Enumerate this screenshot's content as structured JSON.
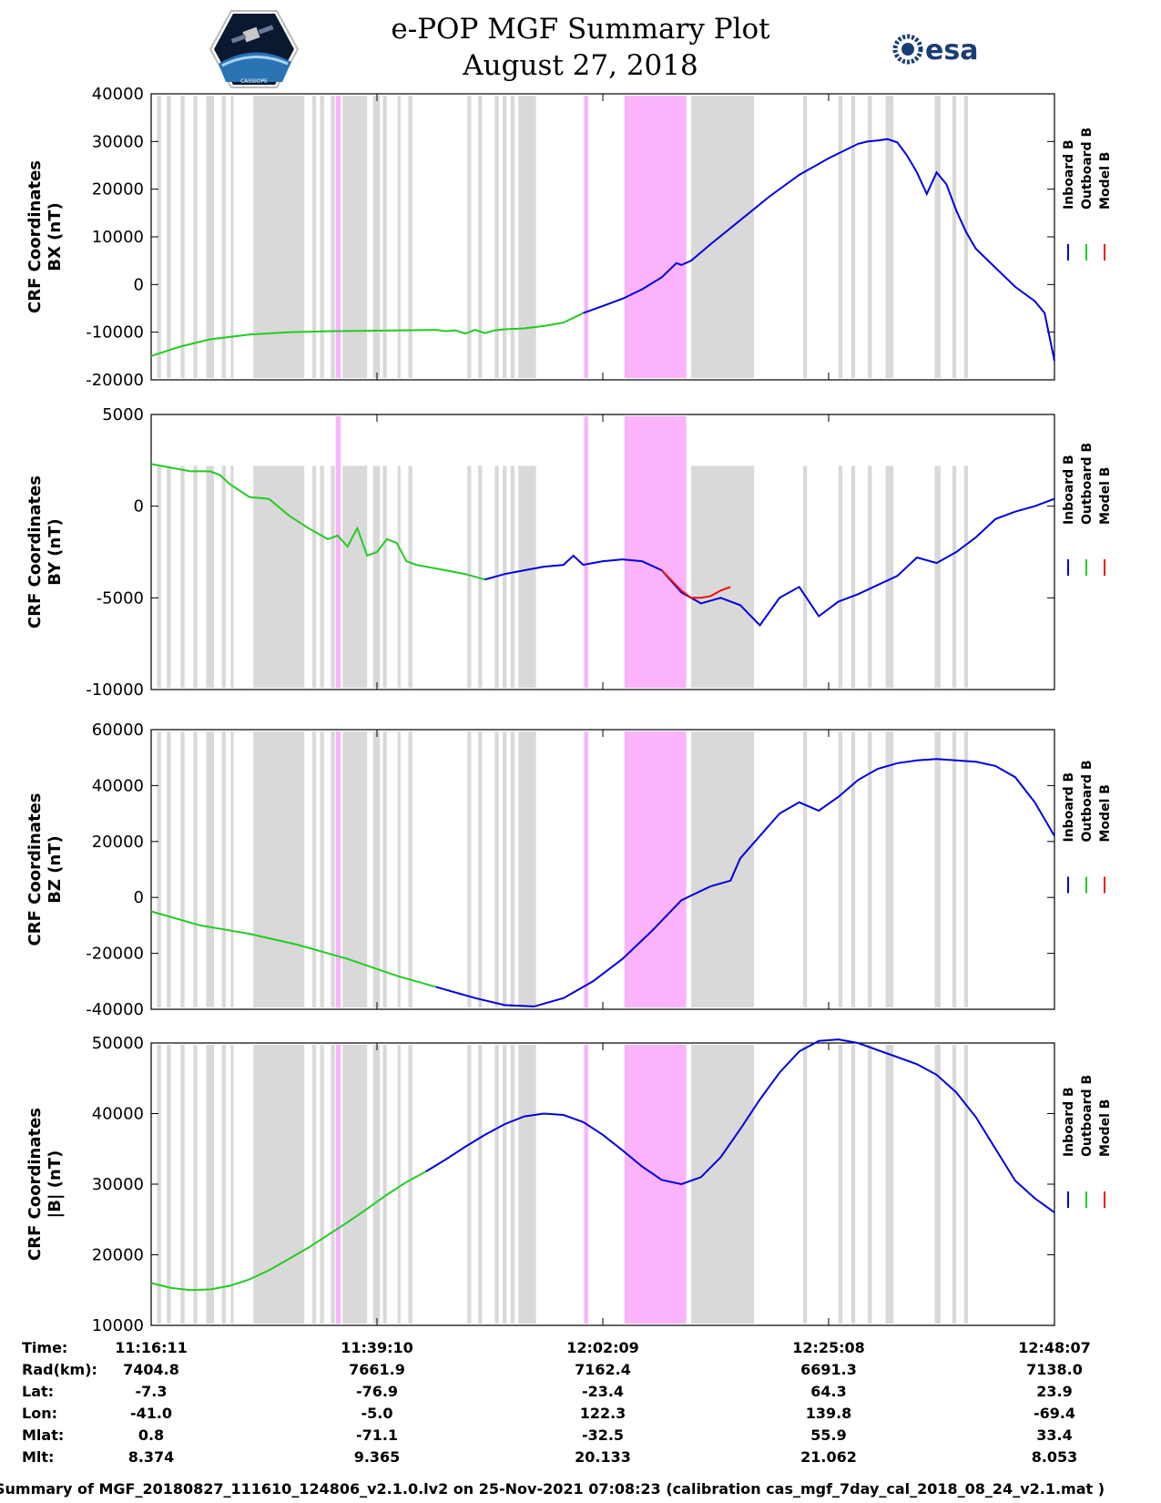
{
  "header": {
    "title_line1": "e-POP MGF Summary Plot",
    "title_line2": "August 27, 2018",
    "left_logo_text": "CASSIOPE",
    "right_logo_text": "esa"
  },
  "colors": {
    "inboard": "#0000dd",
    "outboard": "#22cc22",
    "model": "#ee1111",
    "gray_band": "#d9d9d9",
    "pink_band": "#fbb3fb"
  },
  "chart_data": [
    {
      "type": "line",
      "panel": "bx",
      "ylabel": [
        "CRF Coordinates",
        "BX (nT)"
      ],
      "ylim": [
        -20000,
        40000
      ],
      "yticks": [
        -20000,
        -10000,
        0,
        10000,
        20000,
        30000,
        40000
      ],
      "xlim_minutes": [
        0,
        92
      ],
      "legend": [
        "Inboard B",
        "Outboard B",
        "Model B"
      ],
      "series": [
        {
          "name": "Outboard B",
          "color_key": "outboard",
          "x": [
            0,
            3,
            6,
            10,
            14,
            18,
            22,
            26,
            29,
            30,
            31,
            32,
            33,
            34,
            35,
            36,
            37,
            38,
            40,
            42,
            44
          ],
          "y": [
            -15000,
            -13000,
            -11500,
            -10500,
            -10000,
            -9800,
            -9700,
            -9600,
            -9500,
            -9800,
            -9600,
            -10300,
            -9500,
            -10200,
            -9600,
            -9400,
            -9300,
            -9200,
            -8700,
            -8000,
            -6000
          ]
        },
        {
          "name": "Inboard B",
          "color_key": "inboard",
          "x": [
            44,
            46,
            48,
            50,
            52,
            53.5,
            54,
            55,
            57,
            60,
            63,
            66,
            69,
            72,
            73,
            74,
            75,
            76,
            77,
            78,
            79,
            80,
            81,
            82,
            83,
            84,
            86,
            88,
            90,
            91,
            92
          ],
          "y": [
            -6000,
            -4500,
            -3000,
            -1000,
            1500,
            4500,
            4100,
            5000,
            8500,
            13500,
            18500,
            23000,
            26500,
            29500,
            30000,
            30200,
            30500,
            29800,
            27000,
            23500,
            19000,
            23500,
            21000,
            15500,
            11000,
            7500,
            3500,
            -500,
            -3500,
            -6000,
            -16000
          ]
        }
      ],
      "model_series_x": [
        44,
        92
      ],
      "model_series_note": "overlaps inboard"
    },
    {
      "type": "line",
      "panel": "by",
      "ylabel": [
        "CRF Coordinates",
        "BY (nT)"
      ],
      "ylim": [
        -10000,
        5000
      ],
      "yticks": [
        -10000,
        -5000,
        0,
        5000
      ],
      "xlim_minutes": [
        0,
        92
      ],
      "legend": [
        "Inboard B",
        "Outboard B",
        "Model B"
      ],
      "series": [
        {
          "name": "Outboard B",
          "color_key": "outboard",
          "x": [
            0,
            2,
            4,
            6,
            7,
            8,
            10,
            12,
            14,
            16,
            18,
            19,
            20,
            21,
            22,
            23,
            24,
            25,
            26,
            27,
            28,
            30,
            32,
            34
          ],
          "y": [
            2300,
            2100,
            1900,
            1900,
            1700,
            1200,
            500,
            400,
            -500,
            -1200,
            -1800,
            -1600,
            -2200,
            -1200,
            -2700,
            -2500,
            -1800,
            -2000,
            -3000,
            -3200,
            -3300,
            -3500,
            -3700,
            -4000
          ]
        },
        {
          "name": "Inboard B",
          "color_key": "inboard",
          "x": [
            34,
            36,
            38,
            40,
            42,
            43,
            44,
            46,
            48,
            50,
            52,
            54,
            56,
            58,
            60,
            62,
            64,
            66,
            68,
            70,
            72,
            74,
            76,
            78,
            80,
            82,
            84,
            86,
            88,
            90,
            92
          ],
          "y": [
            -4000,
            -3700,
            -3500,
            -3300,
            -3200,
            -2700,
            -3200,
            -3000,
            -2900,
            -3000,
            -3500,
            -4700,
            -5300,
            -5000,
            -5400,
            -6500,
            -5000,
            -4400,
            -6000,
            -5200,
            -4800,
            -4300,
            -3800,
            -2800,
            -3100,
            -2500,
            -1700,
            -700,
            -300,
            0,
            400
          ]
        },
        {
          "name": "Model B",
          "color_key": "model",
          "x": [
            52,
            54,
            55,
            56,
            57,
            58,
            59
          ],
          "y": [
            -3500,
            -4600,
            -5000,
            -5000,
            -4900,
            -4600,
            -4400
          ]
        }
      ]
    },
    {
      "type": "line",
      "panel": "bz",
      "ylabel": [
        "CRF Coordinates",
        "BZ (nT)"
      ],
      "ylim": [
        -40000,
        60000
      ],
      "yticks": [
        -40000,
        -20000,
        0,
        20000,
        40000,
        60000
      ],
      "xlim_minutes": [
        0,
        92
      ],
      "legend": [
        "Inboard B",
        "Outboard B",
        "Model B"
      ],
      "series": [
        {
          "name": "Outboard B",
          "color_key": "outboard",
          "x": [
            0,
            5,
            10,
            15,
            20,
            25,
            29
          ],
          "y": [
            -5000,
            -10000,
            -13000,
            -17000,
            -22000,
            -28000,
            -32000
          ]
        },
        {
          "name": "Inboard B",
          "color_key": "inboard",
          "x": [
            29,
            33,
            36,
            39,
            42,
            45,
            48,
            51,
            54,
            57,
            59,
            60,
            62,
            64,
            66,
            68,
            70,
            72,
            74,
            76,
            78,
            80,
            82,
            84,
            86,
            88,
            90,
            92
          ],
          "y": [
            -32000,
            -36000,
            -38500,
            -39000,
            -36000,
            -30000,
            -22000,
            -12000,
            -1000,
            4000,
            6000,
            14000,
            22000,
            30000,
            34000,
            31000,
            36000,
            42000,
            46000,
            48000,
            49000,
            49500,
            49000,
            48500,
            47000,
            43000,
            34000,
            22000
          ]
        }
      ]
    },
    {
      "type": "line",
      "panel": "btot",
      "ylabel": [
        "CRF Coordinates",
        "|B| (nT)"
      ],
      "ylim": [
        10000,
        50000
      ],
      "yticks": [
        10000,
        20000,
        30000,
        40000,
        50000
      ],
      "xlim_minutes": [
        0,
        92
      ],
      "legend": [
        "Inboard B",
        "Outboard B",
        "Model B"
      ],
      "series": [
        {
          "name": "Outboard B",
          "color_key": "outboard",
          "x": [
            0,
            2,
            4,
            6,
            8,
            10,
            12,
            14,
            16,
            18,
            20,
            22,
            24,
            26,
            28
          ],
          "y": [
            16000,
            15300,
            15000,
            15100,
            15600,
            16500,
            17800,
            19400,
            21000,
            22800,
            24600,
            26500,
            28500,
            30300,
            31800
          ]
        },
        {
          "name": "Inboard B",
          "color_key": "inboard",
          "x": [
            28,
            30,
            32,
            34,
            36,
            38,
            40,
            42,
            44,
            46,
            48,
            50,
            52,
            54,
            56,
            58,
            60,
            62,
            64,
            66,
            68,
            70,
            72,
            74,
            76,
            78,
            80,
            82,
            84,
            86,
            88,
            90,
            92
          ],
          "y": [
            31800,
            33500,
            35300,
            37000,
            38500,
            39600,
            40000,
            39800,
            38800,
            37000,
            34800,
            32500,
            30600,
            30000,
            31000,
            33800,
            37800,
            42000,
            45800,
            48800,
            50300,
            50500,
            50000,
            49000,
            48000,
            47000,
            45500,
            43000,
            39500,
            35000,
            30500,
            28000,
            26000
          ]
        }
      ]
    }
  ],
  "time_axis": {
    "label": "Time:",
    "ticks": [
      "11:16:11",
      "11:39:10",
      "12:02:09",
      "12:25:08",
      "12:48:07"
    ],
    "tick_minutes": [
      0,
      23,
      46,
      69,
      92
    ]
  },
  "ephemeris": [
    {
      "label": "Time:",
      "values": [
        "11:16:11",
        "11:39:10",
        "12:02:09",
        "12:25:08",
        "12:48:07"
      ]
    },
    {
      "label": "Rad(km):",
      "values": [
        "7404.8",
        "7661.9",
        "7162.4",
        "6691.3",
        "7138.0"
      ]
    },
    {
      "label": "Lat:",
      "values": [
        "-7.3",
        "-76.9",
        "-23.4",
        "64.3",
        "23.9"
      ]
    },
    {
      "label": "Lon:",
      "values": [
        "-41.0",
        "-5.0",
        "122.3",
        "139.8",
        "-69.4"
      ]
    },
    {
      "label": "Mlat:",
      "values": [
        "0.8",
        "-71.1",
        "-32.5",
        "55.9",
        "33.4"
      ]
    },
    {
      "label": "Mlt:",
      "values": [
        "8.374",
        "9.365",
        "20.133",
        "21.062",
        "8.053"
      ]
    }
  ],
  "band_intervals_minutes": {
    "gray": [
      [
        0.6,
        1.0
      ],
      [
        1.6,
        2.0
      ],
      [
        3.0,
        3.4
      ],
      [
        4.3,
        4.7
      ],
      [
        5.6,
        6.4
      ],
      [
        7.2,
        7.6
      ],
      [
        8.1,
        8.4
      ],
      [
        10.4,
        15.6
      ],
      [
        16.4,
        16.8
      ],
      [
        17.2,
        17.6
      ],
      [
        18.3,
        18.7
      ],
      [
        19.5,
        22.0
      ],
      [
        22.6,
        23.3
      ],
      [
        23.6,
        24.0
      ],
      [
        25.1,
        25.4
      ],
      [
        26.2,
        26.6
      ],
      [
        32.2,
        32.6
      ],
      [
        33.3,
        33.7
      ],
      [
        35.0,
        35.4
      ],
      [
        35.8,
        36.2
      ],
      [
        36.6,
        37.0
      ],
      [
        37.4,
        39.2
      ],
      [
        55.0,
        61.4
      ],
      [
        66.4,
        66.8
      ],
      [
        70.0,
        70.4
      ],
      [
        71.3,
        71.7
      ],
      [
        73.0,
        73.4
      ],
      [
        74.8,
        75.6
      ],
      [
        79.8,
        80.4
      ],
      [
        81.6,
        82.0
      ],
      [
        82.8,
        83.2
      ]
    ],
    "pink": [
      [
        18.8,
        19.3
      ],
      [
        44.1,
        44.5
      ],
      [
        48.2,
        54.5
      ]
    ]
  },
  "footer": "Summary of MGF_20180827_111610_124806_v2.1.0.lv2 on 25-Nov-2021 07:08:23 (calibration cas_mgf_7day_cal_2018_08_24_v2.1.mat )"
}
